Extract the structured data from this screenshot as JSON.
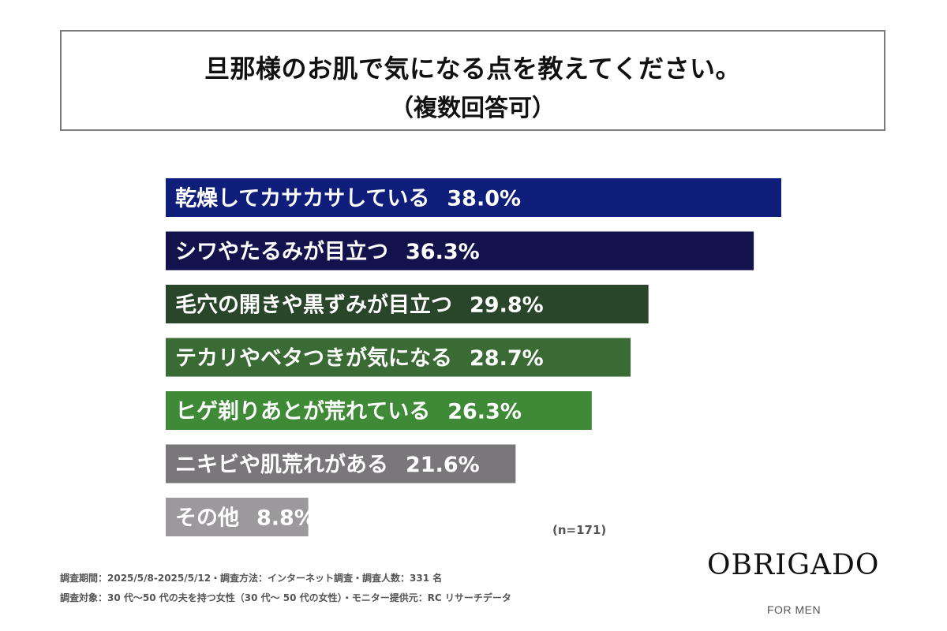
{
  "title": {
    "line1": "旦那様のお肌で気になる点を教えてください。",
    "line2": "（複数回答可）"
  },
  "chart_data": {
    "type": "bar",
    "orientation": "horizontal",
    "categories": [
      "乾燥してカサカサしている",
      "シワやたるみが目立つ",
      "毛穴の開きや黒ずみが目立つ",
      "テカリやベタつきが気になる",
      "ヒゲ剃りあとが荒れている",
      "ニキビや肌荒れがある",
      "その他"
    ],
    "values": [
      38.0,
      36.3,
      29.8,
      28.7,
      26.3,
      21.6,
      8.8
    ],
    "value_labels": [
      "38.0%",
      "36.3%",
      "29.8%",
      "28.7%",
      "26.3%",
      "21.6%",
      "8.8%"
    ],
    "bar_colors": [
      "#0f1e7a",
      "#13124d",
      "#29452a",
      "#3a6b34",
      "#3f8a37",
      "#7a777b",
      "#9c999d"
    ],
    "xlim": [
      0,
      38.0
    ]
  },
  "sample_note": "(n=171)",
  "footnotes": {
    "line1": "調査期間：2025/5/8-2025/5/12・調査方法：インターネット調査・調査人数：331 名",
    "line2": "調査対象：30 代〜50 代の夫を持つ女性（30 代〜 50 代の女性）・モニター提供元：RC リサーチデータ"
  },
  "brand": {
    "name": "OBRIGADO",
    "tagline": "FOR MEN"
  }
}
